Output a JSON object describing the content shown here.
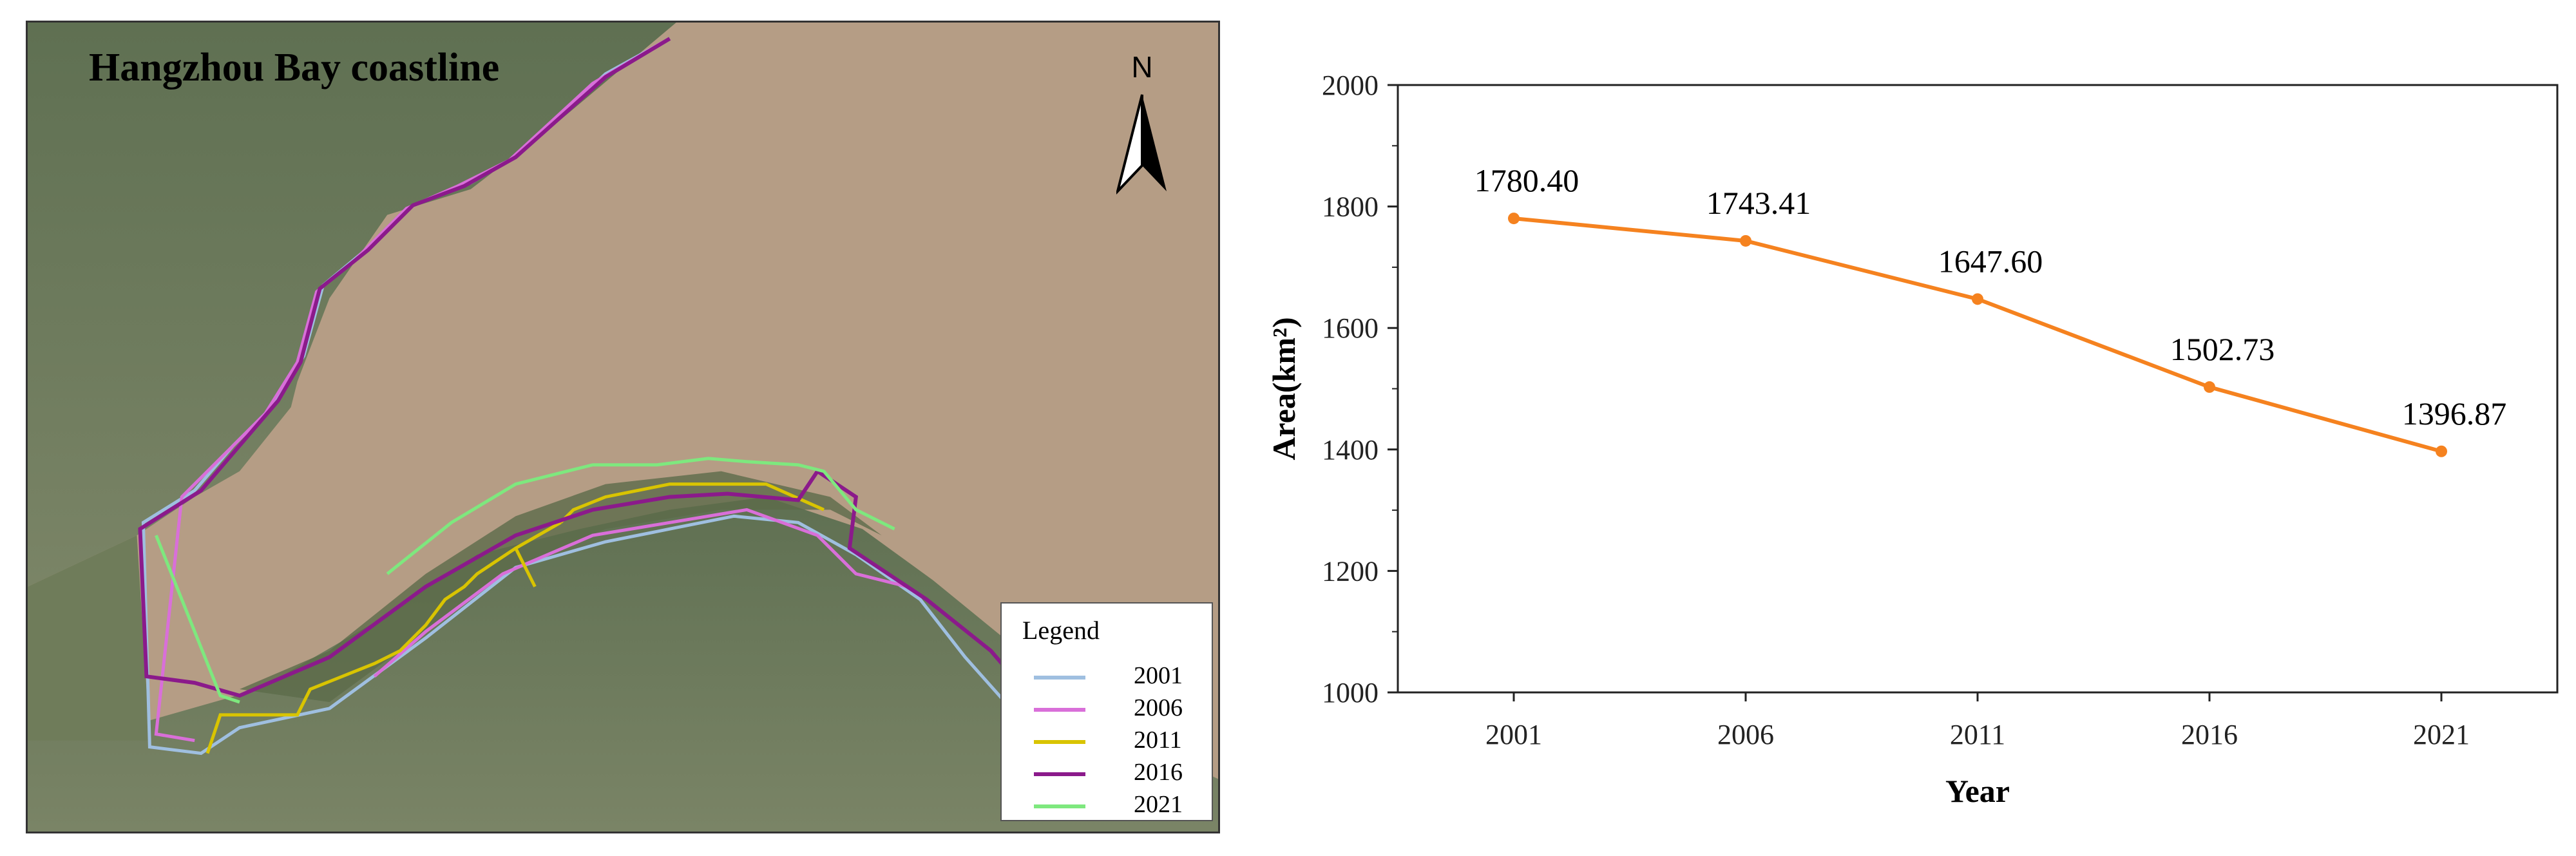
{
  "map": {
    "title": "Hangzhou Bay coastline",
    "north_label": "N",
    "legend": {
      "title": "Legend",
      "items": [
        {
          "year": "2001",
          "color": "#9fbfe0"
        },
        {
          "year": "2006",
          "color": "#d96fd9"
        },
        {
          "year": "2011",
          "color": "#d9c400"
        },
        {
          "year": "2016",
          "color": "#8b1a8b"
        },
        {
          "year": "2021",
          "color": "#7ee87e"
        }
      ]
    },
    "colors": {
      "water": "#b69e86",
      "land": "#6b7a5c"
    }
  },
  "chart_data": {
    "type": "line",
    "categories": [
      "2001",
      "2006",
      "2011",
      "2016",
      "2021"
    ],
    "values": [
      1780.4,
      1743.41,
      1647.6,
      1502.73,
      1396.87
    ],
    "value_labels": [
      "1780.40",
      "1743.41",
      "1647.60",
      "1502.73",
      "1396.87"
    ],
    "xlabel": "Year",
    "ylabel": "Area(km²)",
    "ylim": [
      1000,
      2000
    ],
    "yticks": [
      "1000",
      "1200",
      "1400",
      "1600",
      "1800",
      "2000"
    ],
    "grid": false,
    "color": "#f5821f"
  }
}
